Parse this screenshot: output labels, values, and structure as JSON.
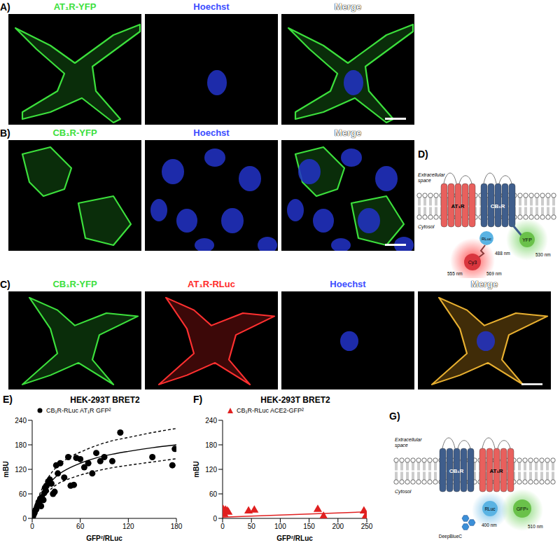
{
  "figure": {
    "panels": [
      {
        "label": "A)",
        "images": [
          {
            "text": "AT₁R-YFP",
            "color": "#3ce03c"
          },
          {
            "text": "Hoechst",
            "color": "#3b4dff"
          },
          {
            "text": "Merge",
            "color": "#ffffff"
          }
        ]
      },
      {
        "label": "B)",
        "images": [
          {
            "text": "CB₁R-YFP",
            "color": "#3ce03c"
          },
          {
            "text": "Hoechst",
            "color": "#3b4dff"
          },
          {
            "text": "Merge",
            "color": "#ffffff"
          }
        ]
      },
      {
        "label": "C)",
        "images": [
          {
            "text": "CB₁R-YFP",
            "color": "#3ce03c"
          },
          {
            "text": "AT₁R-RLuc",
            "color": "#ff2a2a"
          },
          {
            "text": "Hoechst",
            "color": "#3b4dff"
          },
          {
            "text": "Merge",
            "color": "#ffffff"
          }
        ]
      }
    ],
    "diagrams": [
      {
        "label": "D)",
        "extracellular": "Extracellular space",
        "cytosol": "Cytosol",
        "receptors": [
          "AT₁R",
          "CB₁R"
        ],
        "donor": "RLuc",
        "acceptors": [
          "YFP",
          "Cy3"
        ],
        "wavelengths": [
          "488 nm",
          "530 nm",
          "555 nm",
          "569 nm"
        ]
      },
      {
        "label": "G)",
        "extracellular": "Extracellular space",
        "cytosol": "Cytosol",
        "receptors": [
          "CB₁R",
          "AT₁R"
        ],
        "donor": "RLuc",
        "acceptor": "GFP²",
        "substrate": "DeepBlueC",
        "wavelengths": [
          "400 nm",
          "510 nm"
        ]
      }
    ]
  },
  "chart_data": [
    {
      "label": "E)",
      "type": "scatter",
      "title": "HEK-293T BRET2",
      "x_label": "GFP²/RLuc",
      "y_label": "mBU",
      "xlim": [
        0,
        180
      ],
      "xticks": [
        0,
        60,
        120,
        180
      ],
      "ylim": [
        0,
        240
      ],
      "yticks": [
        0,
        60,
        120,
        180,
        240
      ],
      "legend": "top-left",
      "series": [
        {
          "name": "CB₁R-RLuc AT₁R GFP²",
          "type": "scatter",
          "marker": "circle",
          "color": "#000000",
          "x": [
            0,
            1,
            2,
            3,
            4,
            5,
            6,
            7,
            8,
            9,
            10,
            11,
            12,
            14,
            15,
            16,
            17,
            18,
            20,
            22,
            24,
            26,
            28,
            30,
            32,
            35,
            40,
            45,
            48,
            52,
            55,
            60,
            65,
            70,
            75,
            80,
            85,
            90,
            100,
            110,
            150,
            175,
            178
          ],
          "values": [
            0,
            5,
            10,
            14,
            20,
            22,
            28,
            33,
            40,
            35,
            48,
            30,
            52,
            45,
            62,
            75,
            68,
            80,
            90,
            95,
            85,
            60,
            65,
            130,
            110,
            135,
            100,
            150,
            80,
            82,
            148,
            145,
            125,
            135,
            110,
            160,
            140,
            150,
            140,
            210,
            150,
            130,
            170
          ]
        },
        {
          "type": "line",
          "line_style": "solid",
          "color": "#000000",
          "x": [
            0,
            5,
            10,
            20,
            30,
            45,
            60,
            80,
            100,
            120,
            150,
            180
          ],
          "values": [
            0,
            28,
            50,
            82,
            103,
            122,
            135,
            148,
            157,
            164,
            173,
            180
          ]
        },
        {
          "type": "line",
          "line_style": "dashed",
          "color": "#000000",
          "x": [
            0,
            5,
            10,
            20,
            30,
            45,
            60,
            80,
            100,
            120,
            150,
            180
          ],
          "values": [
            0,
            35,
            62,
            100,
            125,
            148,
            162,
            178,
            190,
            198,
            210,
            220
          ]
        },
        {
          "type": "line",
          "line_style": "dashed",
          "color": "#000000",
          "x": [
            0,
            5,
            10,
            20,
            30,
            45,
            60,
            80,
            100,
            120,
            150,
            180
          ],
          "values": [
            0,
            22,
            40,
            65,
            82,
            96,
            106,
            116,
            124,
            130,
            138,
            146
          ]
        }
      ]
    },
    {
      "label": "F)",
      "type": "scatter",
      "title": "HEK-293T BRET2",
      "x_label": "GFP²/RLuc",
      "y_label": "mBU",
      "xlim": [
        0,
        250
      ],
      "xticks": [
        0,
        50,
        100,
        150,
        200,
        250
      ],
      "ylim": [
        0,
        240
      ],
      "yticks": [
        0,
        60,
        120,
        180,
        240
      ],
      "legend": "top-left",
      "series": [
        {
          "name": "CB₁R-RLuc ACE2-GFP²",
          "type": "scatter",
          "marker": "triangle",
          "color": "#e02020",
          "x": [
            1,
            3,
            5,
            8,
            10,
            45,
            55,
            165,
            175,
            245,
            248
          ],
          "values": [
            22,
            10,
            20,
            18,
            15,
            18,
            20,
            22,
            5,
            18,
            5
          ]
        },
        {
          "type": "line",
          "line_style": "solid",
          "color": "#e02020",
          "x": [
            0,
            250
          ],
          "values": [
            3,
            16
          ]
        }
      ]
    }
  ]
}
